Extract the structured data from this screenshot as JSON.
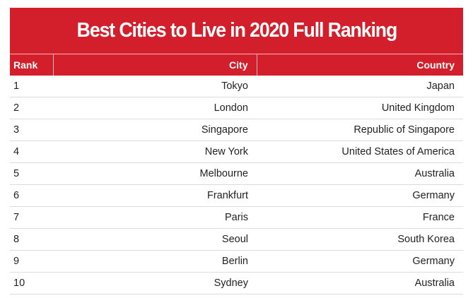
{
  "title": "Best Cities to Live in 2020 Full Ranking",
  "columns": {
    "rank": "Rank",
    "city": "City",
    "country": "Country"
  },
  "rows": [
    {
      "rank": "1",
      "city": "Tokyo",
      "country": "Japan"
    },
    {
      "rank": "2",
      "city": "London",
      "country": "United Kingdom"
    },
    {
      "rank": "3",
      "city": "Singapore",
      "country": "Republic of Singapore"
    },
    {
      "rank": "4",
      "city": "New York",
      "country": "United States of America"
    },
    {
      "rank": "5",
      "city": "Melbourne",
      "country": "Australia"
    },
    {
      "rank": "6",
      "city": "Frankfurt",
      "country": "Germany"
    },
    {
      "rank": "7",
      "city": "Paris",
      "country": "France"
    },
    {
      "rank": "8",
      "city": "Seoul",
      "country": "South Korea"
    },
    {
      "rank": "9",
      "city": "Berlin",
      "country": "Germany"
    },
    {
      "rank": "10",
      "city": "Sydney",
      "country": "Australia"
    }
  ],
  "colors": {
    "header_red": "#d21f2b",
    "header_text": "#ffffff",
    "row_divider": "#dcdcdc"
  }
}
